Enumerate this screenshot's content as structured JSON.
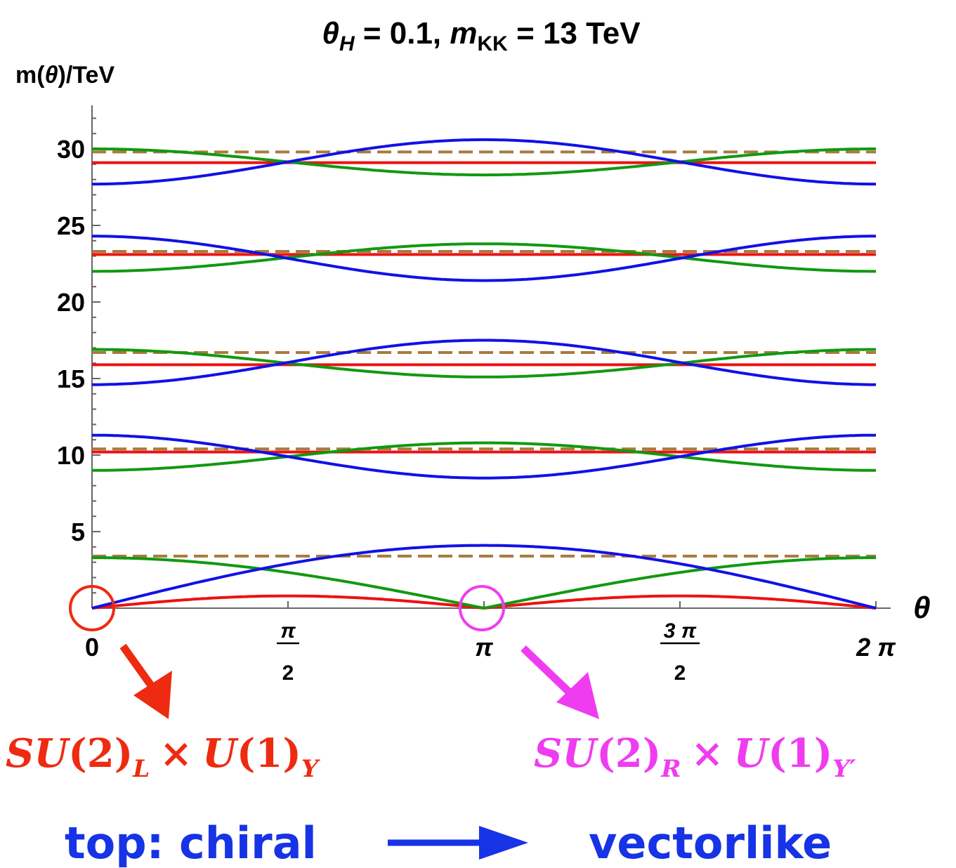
{
  "chart_data": {
    "type": "line",
    "title_parts": [
      "θ",
      "H",
      " = 0.1, ",
      "m",
      "KK",
      " = 13 TeV"
    ],
    "ylabel_parts": [
      "m(",
      "θ",
      ")/TeV"
    ],
    "xlabel": "θ",
    "xlim": [
      0,
      6.2832
    ],
    "ylim": [
      0,
      32.5
    ],
    "yticks": [
      "5",
      "10",
      "15",
      "20",
      "25",
      "30"
    ],
    "ytick_values": [
      5,
      10,
      15,
      20,
      25,
      30
    ],
    "xticks": [
      {
        "value": 0,
        "num": "0",
        "den": ""
      },
      {
        "value": 1.5708,
        "num": "π",
        "den": "2"
      },
      {
        "value": 3.1416,
        "num": "π",
        "den": ""
      },
      {
        "value": 4.7124,
        "num": "3 π",
        "den": "2"
      },
      {
        "value": 6.2832,
        "num": "2 π",
        "den": ""
      }
    ],
    "series_colors": {
      "blue": "#1111e6",
      "green": "#119911",
      "red": "#ee1111",
      "brown_dashed": "#a87a3c"
    },
    "levels": [
      {
        "blue_ends": 0.0,
        "blue_mid": 4.1,
        "green_ends": 3.3,
        "green_mid": 0.0,
        "red_ends": 0.0,
        "red_mid": 0.8,
        "red_shape": "abs-sin",
        "brown": 3.4
      },
      {
        "blue_ends": 11.3,
        "blue_mid": 8.5,
        "green_ends": 9.0,
        "green_mid": 10.8,
        "red_ends": 10.2,
        "red_mid": 10.2,
        "red_shape": "flat",
        "brown": 10.4
      },
      {
        "blue_ends": 14.6,
        "blue_mid": 17.5,
        "green_ends": 16.9,
        "green_mid": 15.1,
        "red_ends": 15.9,
        "red_mid": 15.9,
        "red_shape": "flat",
        "brown": 16.7
      },
      {
        "blue_ends": 24.3,
        "blue_mid": 21.4,
        "green_ends": 22.0,
        "green_mid": 23.8,
        "red_ends": 23.1,
        "red_mid": 23.1,
        "red_shape": "flat",
        "brown": 23.3
      },
      {
        "blue_ends": 27.7,
        "blue_mid": 30.6,
        "green_ends": 30.0,
        "green_mid": 28.3,
        "red_ends": 29.1,
        "red_mid": 29.1,
        "red_shape": "flat",
        "brown": 29.8
      }
    ]
  },
  "annotations": {
    "left": {
      "color": "#ee2a10",
      "base1": "SU",
      "arg1": "(2)",
      "sub1": "L",
      "times": "×",
      "base2": "U",
      "arg2": "(1)",
      "sub2": "Y"
    },
    "right": {
      "color": "#f03cf0",
      "base1": "SU",
      "arg1": "(2)",
      "sub1": "R",
      "times": "×",
      "base2": "U",
      "arg2": "(1)",
      "sub2": "Y′"
    },
    "caption_left": "top: chiral",
    "caption_right": "vectorlike",
    "caption_color": "#1733e6"
  }
}
